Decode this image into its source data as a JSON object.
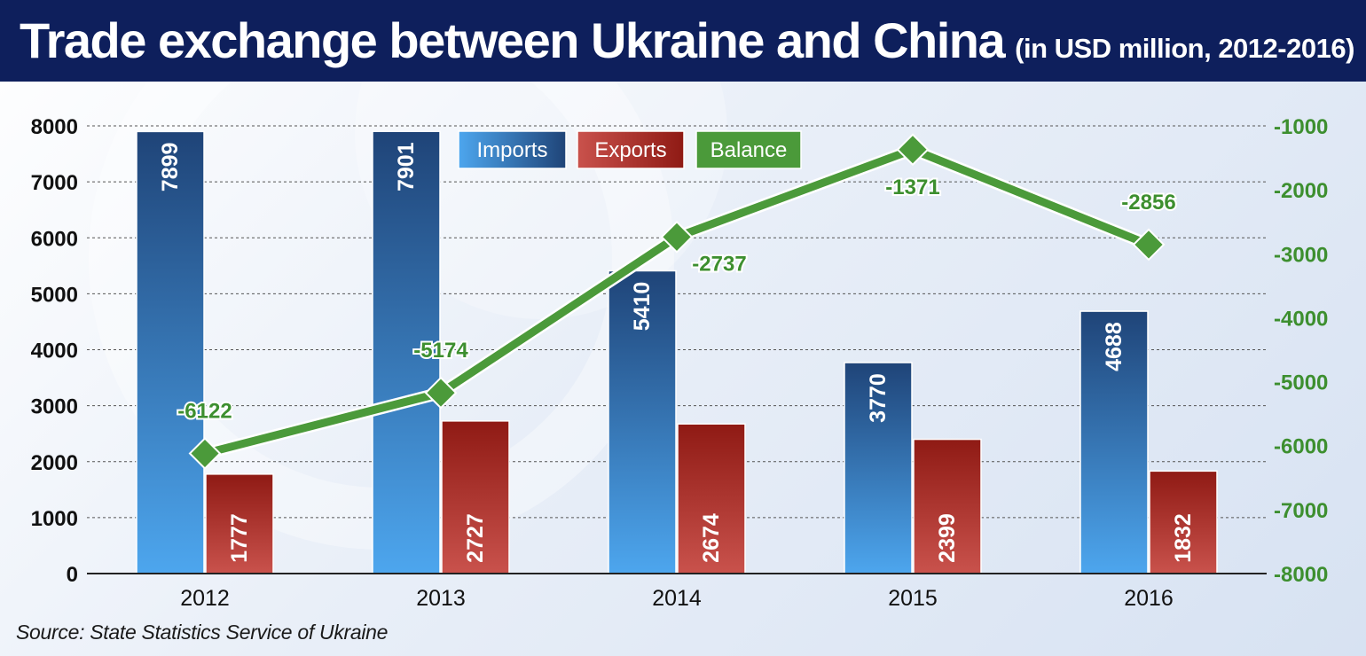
{
  "header": {
    "title": "Trade exchange between Ukraine and China",
    "subtitle": "(in USD million, 2012-2016)"
  },
  "source": "Source: State Statistics Service of Ukraine",
  "colors": {
    "header_bg": "#0e1f5c",
    "imports": "#3f8fdc",
    "exports": "#b8302c",
    "balance": "#4b9a3a",
    "balance_text": "#3d8f2f"
  },
  "chart_data": {
    "type": "bar",
    "categories": [
      "2012",
      "2013",
      "2014",
      "2015",
      "2016"
    ],
    "series": [
      {
        "name": "Imports",
        "type": "bar",
        "axis": "left",
        "values": [
          7899,
          7901,
          5410,
          3770,
          4688
        ]
      },
      {
        "name": "Exports",
        "type": "bar",
        "axis": "left",
        "values": [
          1777,
          2727,
          2674,
          2399,
          1832
        ]
      },
      {
        "name": "Balance",
        "type": "line",
        "axis": "right",
        "values": [
          -6122,
          -5174,
          -2737,
          -1371,
          -2856
        ]
      }
    ],
    "y_left": {
      "min": 0,
      "max": 8000,
      "ticks": [
        "0",
        "1000",
        "2000",
        "3000",
        "4000",
        "5000",
        "6000",
        "7000",
        "8000"
      ]
    },
    "y_right": {
      "min": -8000,
      "max": -1000,
      "ticks": [
        "-8000",
        "-7000",
        "-6000",
        "-5000",
        "-4000",
        "-3000",
        "-2000",
        "-1000"
      ]
    },
    "grid": true,
    "legend": {
      "placement": "top-center",
      "entries": [
        "Imports",
        "Exports",
        "Balance"
      ]
    }
  }
}
